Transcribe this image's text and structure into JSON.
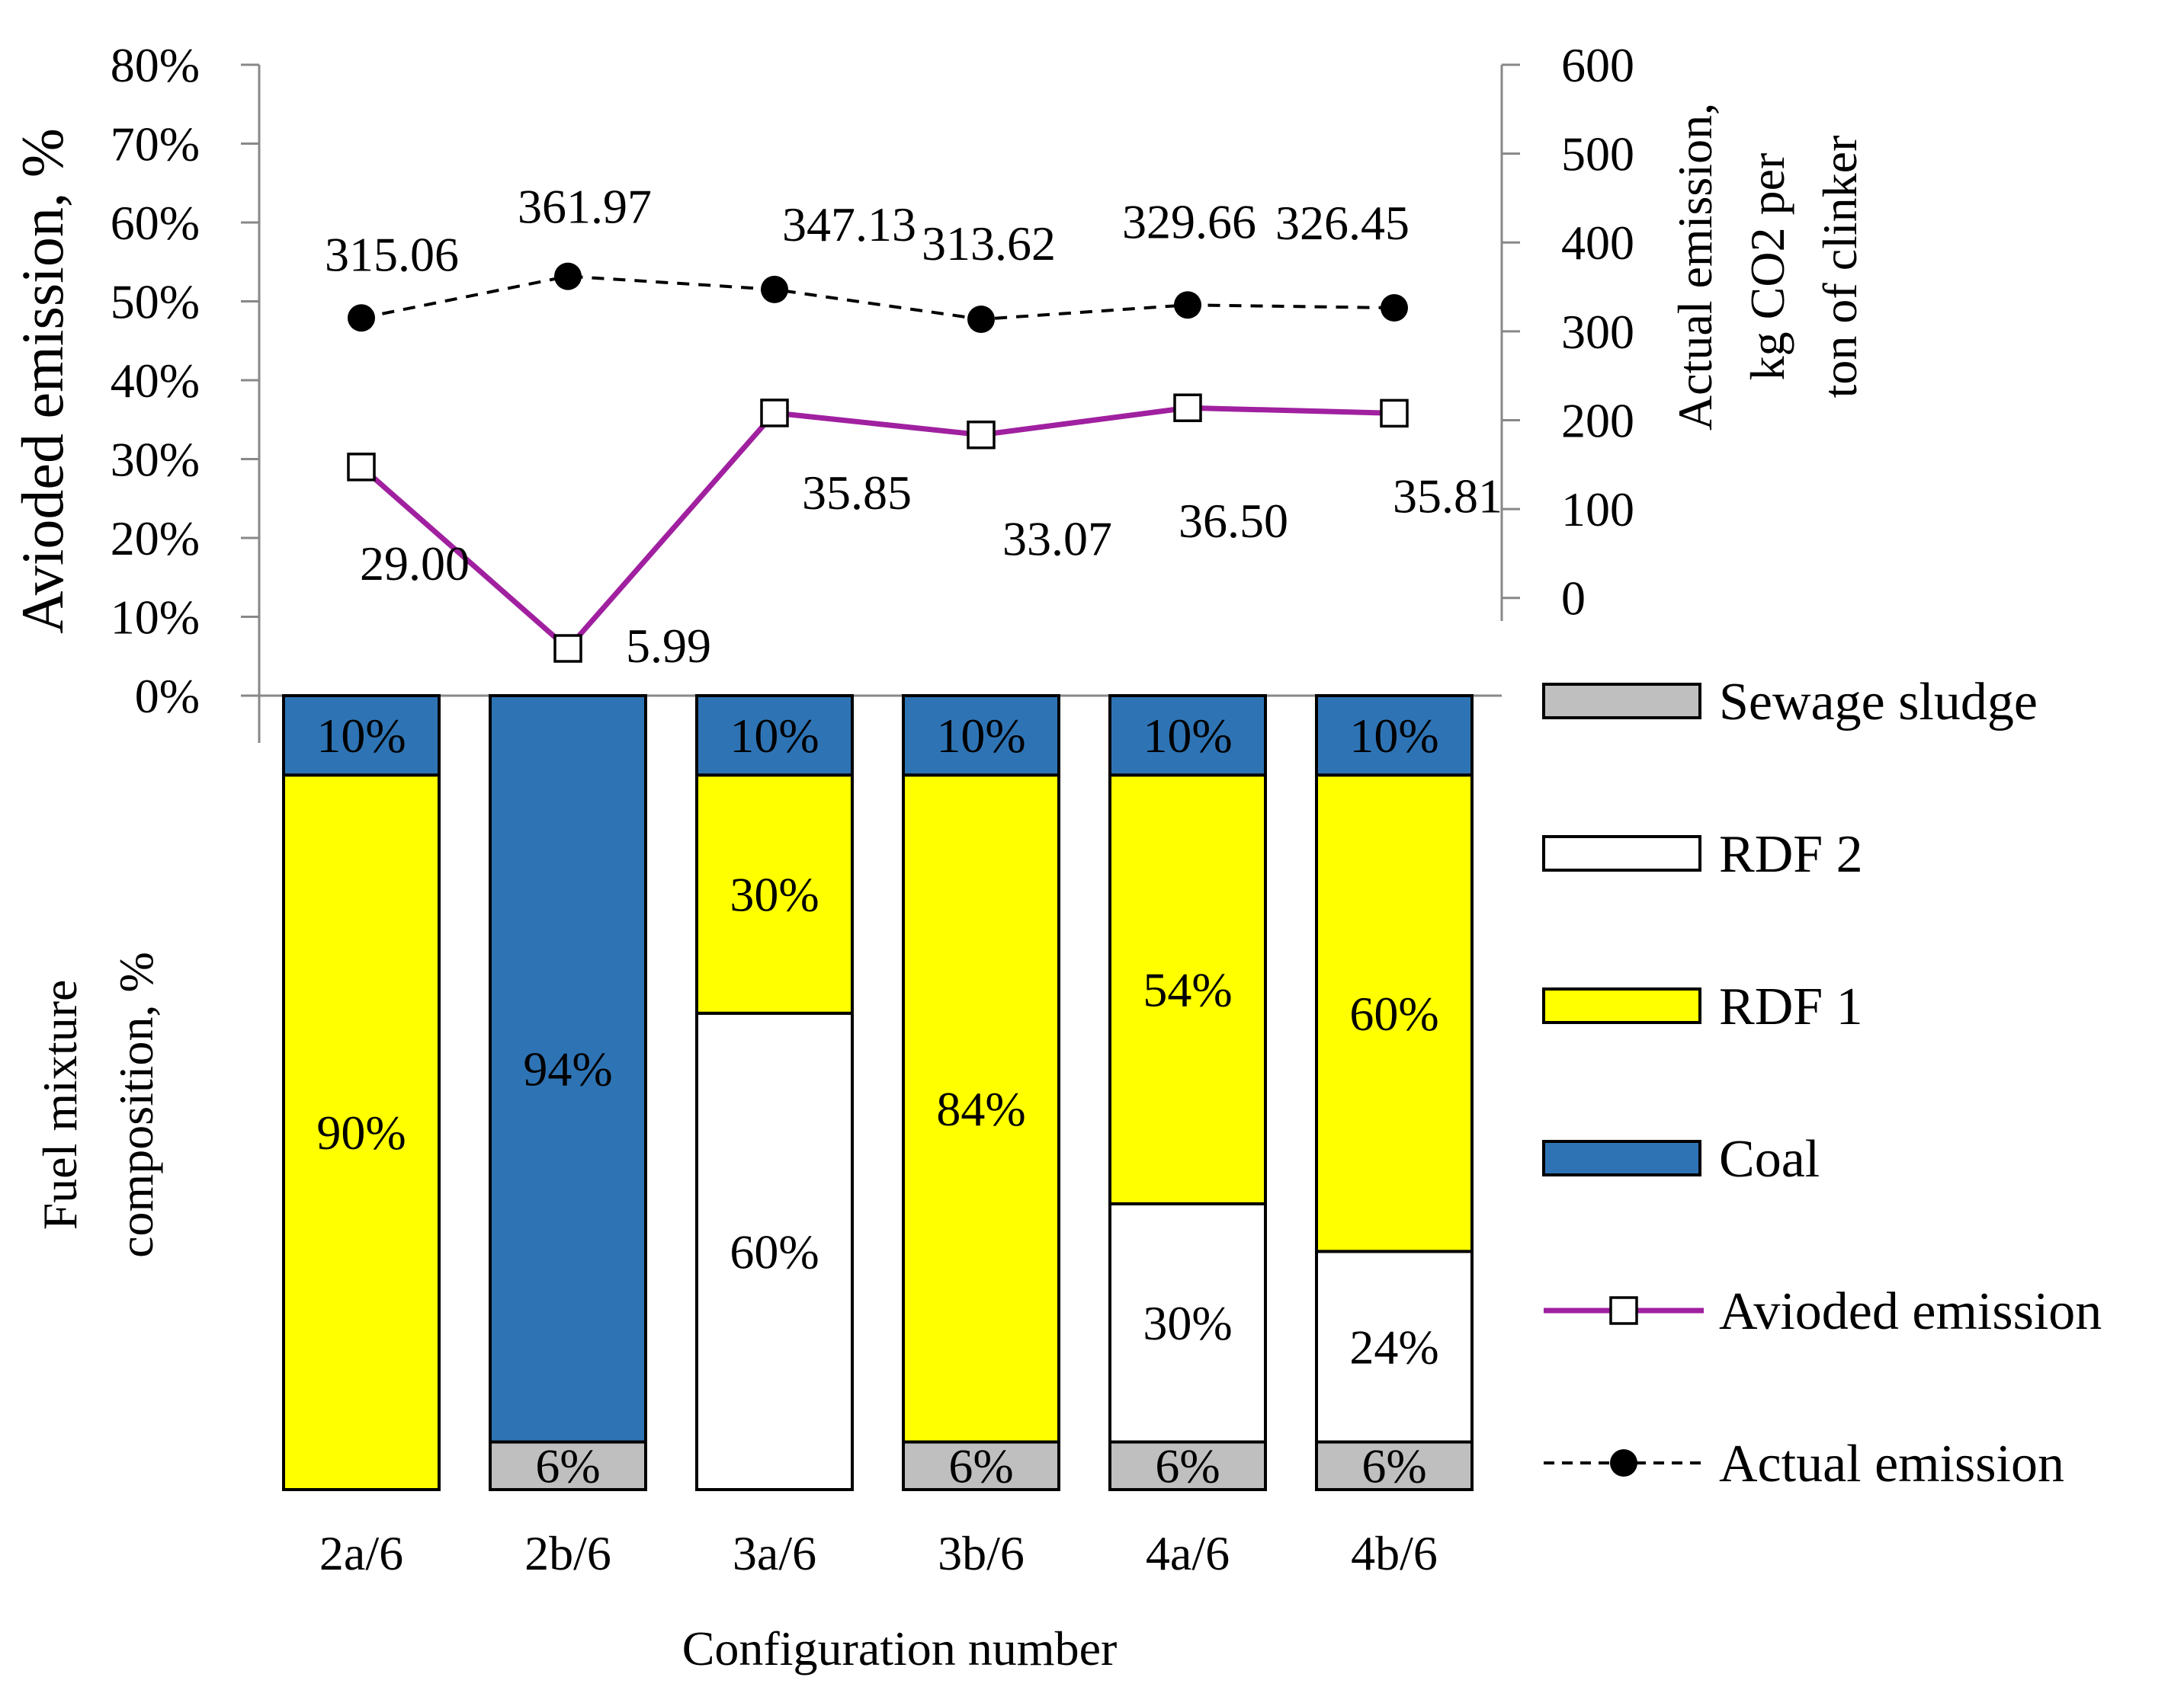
{
  "chart_data": [
    {
      "type": "line",
      "categories": [
        "2a/6",
        "2b/6",
        "3a/6",
        "3b/6",
        "4a/6",
        "4b/6"
      ],
      "y_left_label": "Avioded emission, %",
      "y_left_ticks": [
        "0%",
        "10%",
        "20%",
        "30%",
        "40%",
        "50%",
        "60%",
        "70%",
        "80%"
      ],
      "y_left_range": [
        0,
        80
      ],
      "y_right_label_lines": [
        "Actual emission,",
        "kg CO2 per",
        "ton of clinker"
      ],
      "y_right_ticks": [
        "0",
        "100",
        "200",
        "300",
        "400",
        "500",
        "600"
      ],
      "y_right_range": [
        -110,
        600
      ],
      "series": [
        {
          "name": "Avioded emission",
          "axis": "left",
          "color": "#a020a0",
          "marker": "open-square",
          "values": [
            29.0,
            5.99,
            35.85,
            33.07,
            36.5,
            35.81
          ],
          "labels": [
            "29.00",
            "5.99",
            "35.85",
            "33.07",
            "36.50",
            "35.81"
          ]
        },
        {
          "name": "Actual emission",
          "axis": "right",
          "color": "#000000",
          "marker": "filled-circle",
          "line_style": "dashed",
          "values": [
            315.06,
            361.97,
            347.13,
            313.62,
            329.66,
            326.45
          ],
          "labels": [
            "315.06",
            "361.97",
            "347.13",
            "313.62",
            "329.66",
            "326.45"
          ]
        }
      ]
    },
    {
      "type": "bar",
      "stacked": true,
      "orientation": "vertical",
      "categories": [
        "2a/6",
        "2b/6",
        "3a/6",
        "3b/6",
        "4a/6",
        "4b/6"
      ],
      "ylabel_lines": [
        "Fuel mixture",
        "composition, %"
      ],
      "xlabel": "Configuration number",
      "order_bottom_to_top": [
        "Sewage sludge",
        "RDF 2",
        "RDF 1",
        "Coal"
      ],
      "series": [
        {
          "name": "Sewage sludge",
          "color": "#bfbfbf",
          "values": [
            0,
            6,
            0,
            6,
            6,
            6
          ],
          "labels": [
            "",
            "6%",
            "",
            "6%",
            "6%",
            "6%"
          ]
        },
        {
          "name": "RDF 2",
          "color": "#ffffff",
          "values": [
            0,
            0,
            60,
            0,
            30,
            24
          ],
          "labels": [
            "",
            "",
            "60%",
            "",
            "30%",
            "24%"
          ]
        },
        {
          "name": "RDF 1",
          "color": "#ffff00",
          "values": [
            90,
            0,
            30,
            84,
            54,
            60
          ],
          "labels": [
            "90%",
            "",
            "30%",
            "84%",
            "54%",
            "60%"
          ]
        },
        {
          "name": "Coal",
          "color": "#2e74b5",
          "values": [
            10,
            94,
            10,
            10,
            10,
            10
          ],
          "labels": [
            "10%",
            "94%",
            "10%",
            "10%",
            "10%",
            "10%"
          ]
        }
      ]
    }
  ],
  "legend": {
    "placement": "right",
    "items": [
      {
        "label": "Sewage sludge",
        "kind": "box",
        "color": "#bfbfbf"
      },
      {
        "label": "RDF 2",
        "kind": "box",
        "color": "#ffffff"
      },
      {
        "label": "RDF 1",
        "kind": "box",
        "color": "#ffff00"
      },
      {
        "label": "Coal",
        "kind": "box",
        "color": "#2e74b5"
      },
      {
        "label": "Avioded emission",
        "kind": "line-square",
        "color": "#a020a0"
      },
      {
        "label": "Actual emission",
        "kind": "dashed-circle",
        "color": "#000000"
      }
    ]
  }
}
